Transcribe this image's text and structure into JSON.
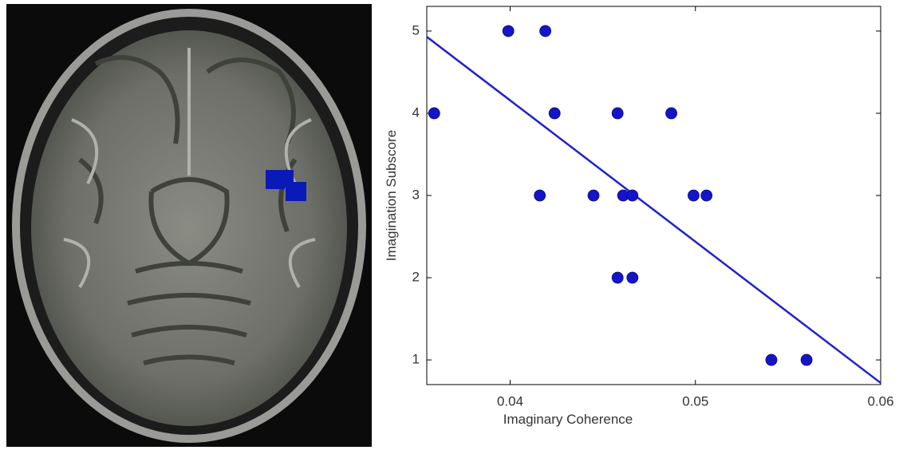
{
  "chart_data": {
    "type": "scatter",
    "xlabel": "Imaginary Coherence",
    "ylabel": "Imagination Subscore",
    "x": [
      0.0359,
      0.0399,
      0.0419,
      0.0424,
      0.0416,
      0.0445,
      0.0458,
      0.0461,
      0.0466,
      0.0458,
      0.0466,
      0.0487,
      0.0499,
      0.0506,
      0.0541,
      0.056
    ],
    "values": [
      4,
      5,
      5,
      4,
      3,
      3,
      4,
      3,
      3,
      2,
      2,
      4,
      3,
      3,
      1,
      1
    ],
    "color": "#1414c8",
    "trend_line": {
      "x": [
        0.0355,
        0.06
      ],
      "y": [
        4.93,
        0.72
      ],
      "color": "#1f1fd6"
    },
    "xlim": [
      0.0355,
      0.06
    ],
    "ylim": [
      0.7,
      5.3
    ],
    "xticks": [
      0.04,
      0.05,
      0.06
    ],
    "yticks": [
      1,
      2,
      3,
      4,
      5
    ]
  }
}
